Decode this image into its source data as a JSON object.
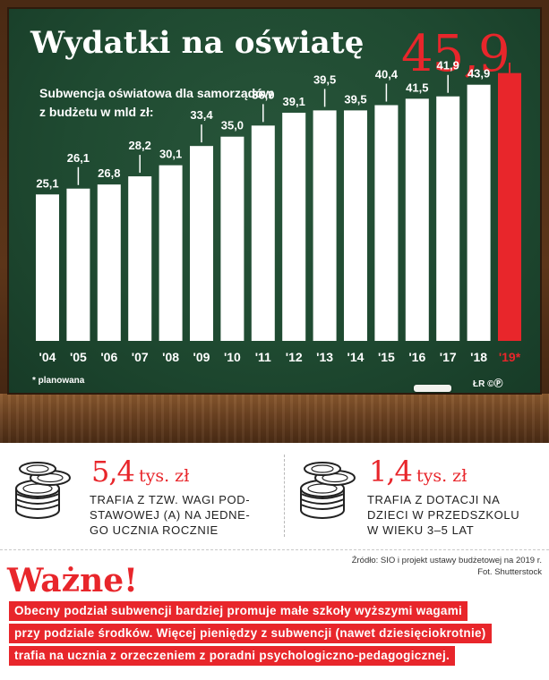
{
  "infographic": {
    "title": "Wydatki na oświatę",
    "subtitle_line1": "Subwencja oświatowa dla samorządów",
    "subtitle_line2": "z budżetu w mld zł:",
    "headline_value": "45,9",
    "footnote": "* planowana",
    "credit": "ŁR ©Ⓟ"
  },
  "chart_data": {
    "type": "bar",
    "categories": [
      "'04",
      "'05",
      "'06",
      "'07",
      "'08",
      "'09",
      "'10",
      "'11",
      "'12",
      "'13",
      "'14",
      "'15",
      "'16",
      "'17",
      "'18",
      "'19*"
    ],
    "values": [
      25.1,
      26.1,
      26.8,
      28.2,
      30.1,
      33.4,
      35.0,
      36.9,
      39.1,
      39.5,
      39.5,
      40.4,
      41.5,
      41.9,
      43.9,
      45.9
    ],
    "value_labels": [
      "25,1",
      "26,1",
      "26,8",
      "28,2",
      "30,1",
      "33,4",
      "35,0",
      "36,9",
      "39,1",
      "39,5",
      "39,5",
      "40,4",
      "41,5",
      "41,9",
      "43,9",
      ""
    ],
    "ylabel": "mld zł",
    "ylim": [
      0,
      46
    ],
    "grid": false,
    "colors": {
      "bar": "#ffffff",
      "highlight": "#e8262b",
      "label": "#ffffff"
    },
    "highlight_index": 15
  },
  "stats": [
    {
      "value": "5,4",
      "unit": "tys. zł",
      "desc_lines": [
        "TRAFIA Z TZW. WAGI POD-",
        "STAWOWEJ (A) NA JEDNE-",
        "GO UCZNIA ROCZNIE"
      ],
      "icon": "coin-stack-icon"
    },
    {
      "value": "1,4",
      "unit": "tys. zł",
      "desc_lines": [
        "TRAFIA Z DOTACJI NA",
        "DZIECI W PRZEDSZKOLU",
        "W WIEKU 3–5 LAT"
      ],
      "icon": "coin-stack-icon"
    }
  ],
  "source": {
    "line1": "Źródło: SIO i projekt ustawy budżetowej na 2019 r.",
    "line2": "Fot. Shutterstock"
  },
  "important": {
    "title": "Ważne!",
    "lines": [
      "Obecny podział subwencji bardziej promuje małe szkoły wyższymi wagami",
      "przy podziale środków. Więcej pieniędzy z subwencji (nawet dziesięciokrotnie)",
      "trafia na ucznia z orzeczeniem z poradni psychologiczno-pedagogicznej."
    ]
  }
}
